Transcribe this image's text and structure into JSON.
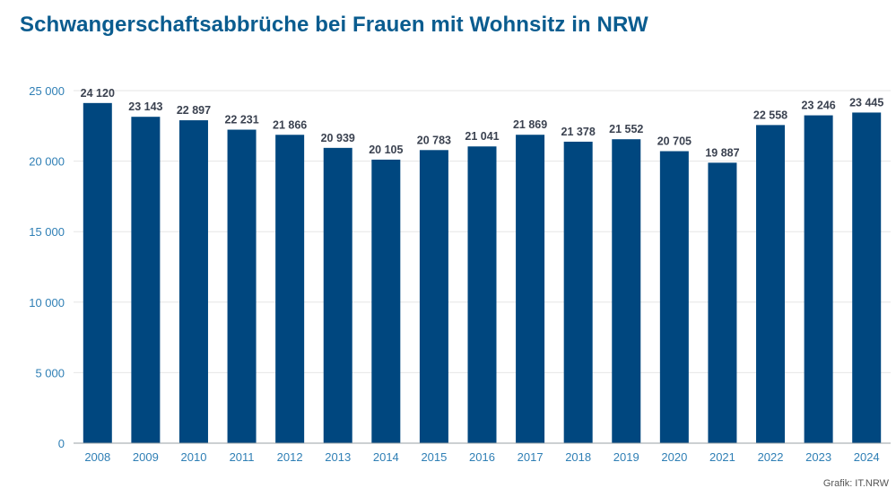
{
  "title": "Schwangerschaftsabbrüche bei Frauen mit Wohnsitz in NRW",
  "credit": "Grafik: IT.NRW",
  "colors": {
    "title": "#0a5c8f",
    "bar": "#00477f",
    "tick": "#2f7fb5",
    "grid": "#e6e6e6",
    "label": "#3b4250"
  },
  "chart_data": {
    "type": "bar",
    "title": "Schwangerschaftsabbrüche bei Frauen mit Wohnsitz in NRW",
    "xlabel": "",
    "ylabel": "",
    "categories": [
      "2008",
      "2009",
      "2010",
      "2011",
      "2012",
      "2013",
      "2014",
      "2015",
      "2016",
      "2017",
      "2018",
      "2019",
      "2020",
      "2021",
      "2022",
      "2023",
      "2024"
    ],
    "values": [
      24120,
      23143,
      22897,
      22231,
      21866,
      20939,
      20105,
      20783,
      21041,
      21869,
      21378,
      21552,
      20705,
      19887,
      22558,
      23246,
      23445
    ],
    "value_labels": [
      "24 120",
      "23 143",
      "22 897",
      "22 231",
      "21 866",
      "20 939",
      "20 105",
      "20 783",
      "21 041",
      "21 869",
      "21 378",
      "21 552",
      "20 705",
      "19 887",
      "22 558",
      "23 246",
      "23 445"
    ],
    "yticks": [
      0,
      5000,
      10000,
      15000,
      20000,
      25000
    ],
    "ytick_labels": [
      "0",
      "5 000",
      "10 000",
      "15 000",
      "20 000",
      "25 000"
    ],
    "ylim": [
      0,
      25000
    ],
    "grid": true,
    "legend": "none"
  }
}
